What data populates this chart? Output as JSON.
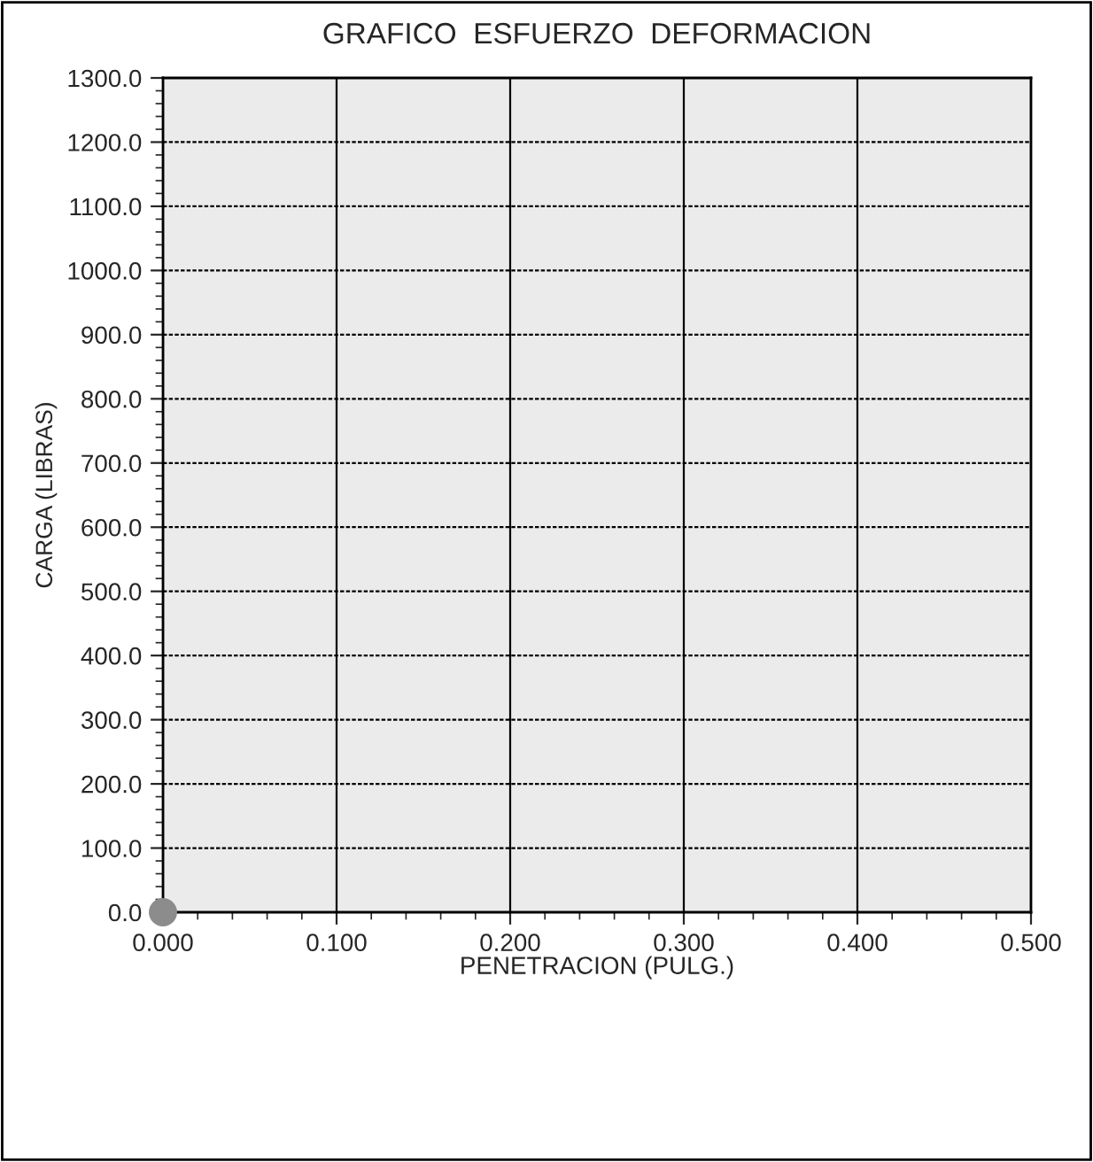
{
  "chart_data": {
    "type": "scatter",
    "title": "GRAFICO  ESFUERZO  DEFORMACION",
    "xlabel": "PENETRACION (PULG.)",
    "ylabel": "CARGA (LIBRAS)",
    "series": [
      {
        "color": "#8c8c8c",
        "x": [
          0
        ],
        "values": [
          0
        ]
      }
    ],
    "xlim": [
      0,
      0.5
    ],
    "ylim": [
      0,
      1300
    ],
    "xticks": [
      {
        "value": 0,
        "label": "0.000"
      },
      {
        "value": 0.1,
        "label": "0.100"
      },
      {
        "value": 0.2,
        "label": "0.200"
      },
      {
        "value": 0.3,
        "label": "0.300"
      },
      {
        "value": 0.4,
        "label": "0.400"
      },
      {
        "value": 0.5,
        "label": "0.500"
      }
    ],
    "yticks": [
      {
        "value": 0,
        "label": "0.0"
      },
      {
        "value": 100,
        "label": "100.0"
      },
      {
        "value": 200,
        "label": "200.0"
      },
      {
        "value": 300,
        "label": "300.0"
      },
      {
        "value": 400,
        "label": "400.0"
      },
      {
        "value": 500,
        "label": "500.0"
      },
      {
        "value": 600,
        "label": "600.0"
      },
      {
        "value": 700,
        "label": "700.0"
      },
      {
        "value": 800,
        "label": "800.0"
      },
      {
        "value": 900,
        "label": "900.0"
      },
      {
        "value": 1000,
        "label": "1000.0"
      },
      {
        "value": 1100,
        "label": "1100.0"
      },
      {
        "value": 1200,
        "label": "1200.0"
      },
      {
        "value": 1300,
        "label": "1300.0"
      }
    ],
    "grid": true,
    "marker": "circle"
  }
}
